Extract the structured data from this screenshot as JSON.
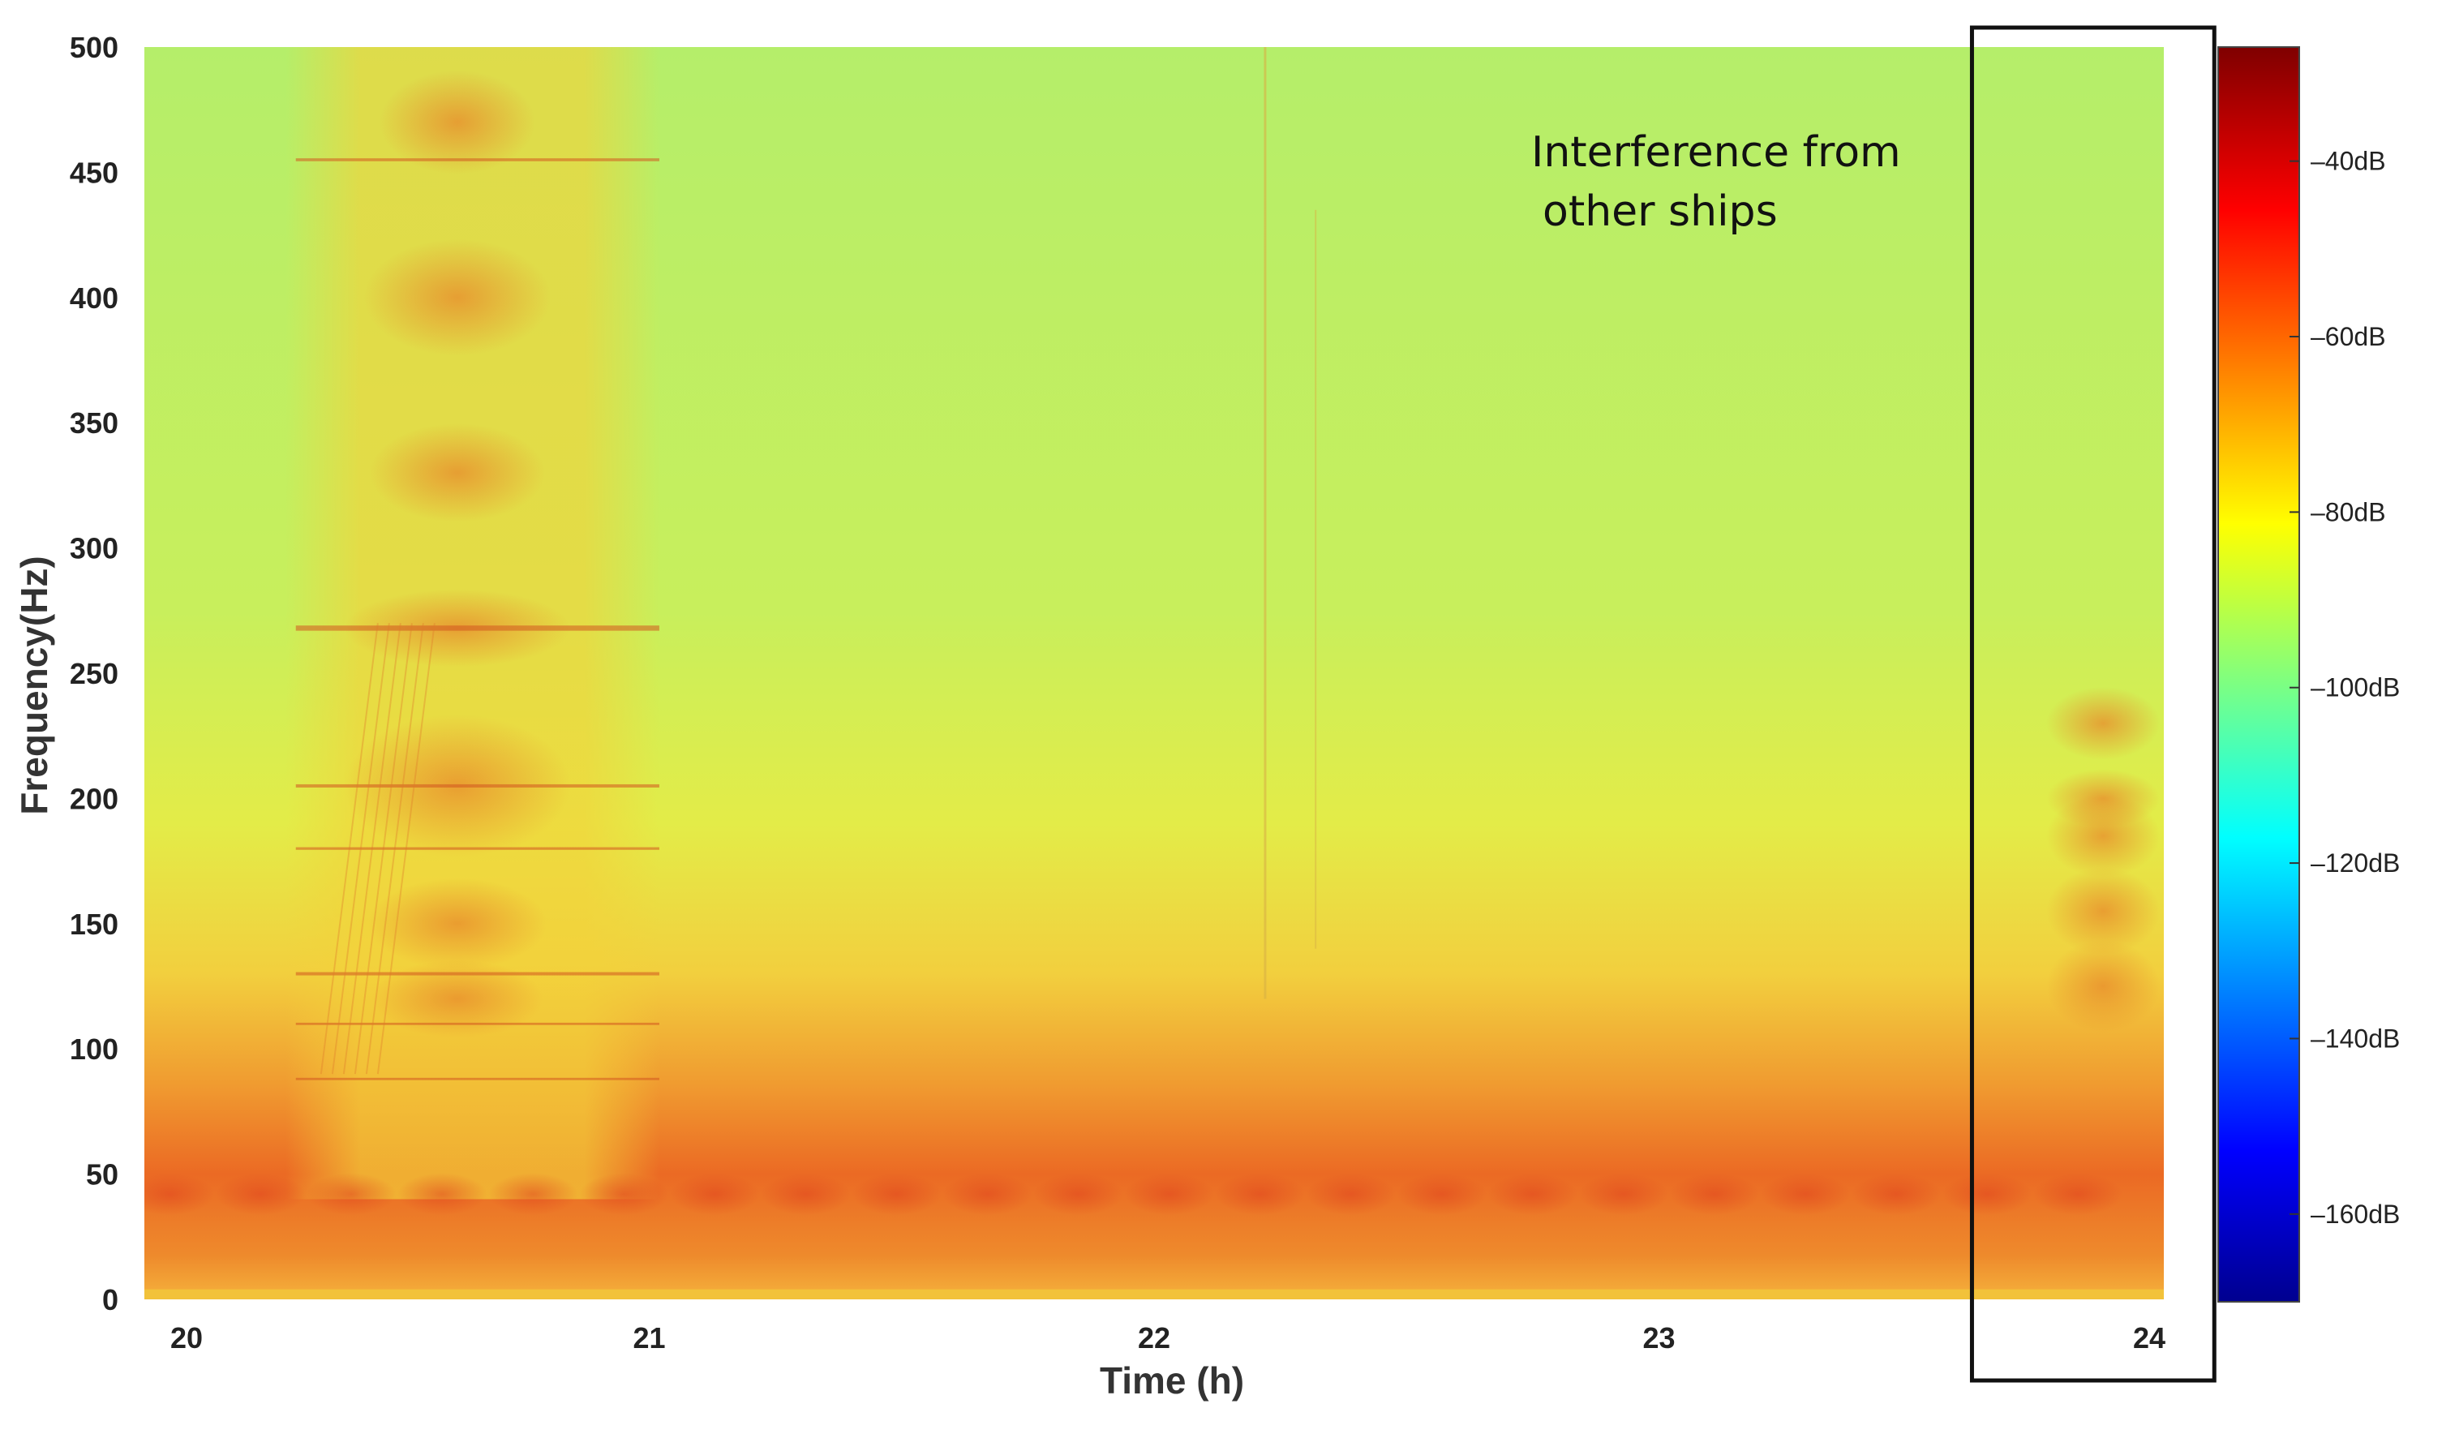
{
  "chart_data": {
    "type": "heatmap",
    "xlabel": "Time (h)",
    "ylabel": "Frequency(Hz)",
    "xlim": [
      20,
      24
    ],
    "ylim": [
      0,
      500
    ],
    "x_ticks": [
      "20",
      "21",
      "22",
      "23",
      "24"
    ],
    "y_ticks": [
      "0",
      "50",
      "100",
      "150",
      "200",
      "250",
      "300",
      "350",
      "400",
      "450",
      "500"
    ],
    "colorbar": {
      "range_db": [
        -170,
        -27
      ],
      "ticks": [
        "-40dB",
        "-60dB",
        "-80dB",
        "-100dB",
        "-120dB",
        "-140dB",
        "-160dB"
      ],
      "colormap": "jet"
    },
    "annotation": {
      "line1": "Interference from",
      "line2": "other ships",
      "box_time_range": [
        23.62,
        24.1
      ]
    },
    "features": [
      {
        "desc": "low-frequency noise band",
        "time": [
          20,
          24
        ],
        "freq": [
          10,
          65
        ],
        "level_db": -58
      },
      {
        "desc": "harmonic ship signature",
        "time": [
          20.3,
          21.0
        ],
        "freq": [
          80,
          500
        ],
        "level_db": -70
      },
      {
        "desc": "broadband interference",
        "time": [
          23.7,
          24.0
        ],
        "freq": [
          110,
          250
        ],
        "level_db": -68
      }
    ]
  }
}
